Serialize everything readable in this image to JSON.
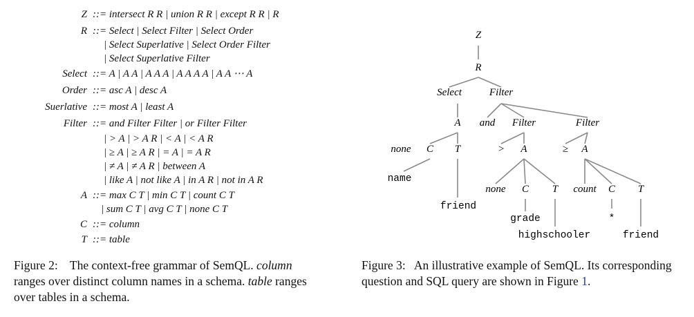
{
  "grammar": [
    {
      "lhs": "Z",
      "rhs": "::= intersect R R | union R R | except R R | R"
    },
    {
      "lhs": "R",
      "rhs": "::= Select | Select Filter | Select Order"
    },
    {
      "lhs": "",
      "rhs": "| Select Superlative | Select Order Filter"
    },
    {
      "lhs": "",
      "rhs": "| Select Superlative Filter"
    },
    {
      "lhs": "Select",
      "rhs": "::= A | A A | A A A | A A A A | A A ⋯ A"
    },
    {
      "lhs": "Order",
      "rhs": "::= asc A | desc A"
    },
    {
      "lhs": "Suerlative",
      "rhs": "::= most A | least A"
    },
    {
      "lhs": "Filter",
      "rhs": "::= and Filter Filter | or Filter Filter"
    },
    {
      "lhs": "",
      "rhs": "| > A  | > A R  | < A  | < A R"
    },
    {
      "lhs": "",
      "rhs": "| ≥ A  | ≥ A R  | = A  | = A R"
    },
    {
      "lhs": "",
      "rhs": "| ≠ A  | ≠ A R  | between A"
    },
    {
      "lhs": "",
      "rhs": "| like A  | not like A  | in A R | not in A R"
    },
    {
      "lhs": "A",
      "rhs": "::= max C  T | min C T | count C T"
    },
    {
      "lhs": "",
      "rhs": "| sum C  T | avg C T | none C T"
    },
    {
      "lhs": "C",
      "rhs": "::= column"
    },
    {
      "lhs": "T",
      "rhs": "::= table"
    }
  ],
  "caption2": {
    "label": "Figure 2:",
    "text": "The context-free grammar of SemQL.",
    "column_word": "column",
    "text2": "ranges over distinct column names in a schema.",
    "table_word": "table",
    "text3": "ranges over tables in a schema."
  },
  "caption3": {
    "label": "Figure 3:",
    "text": "An illustrative example of SemQL. Its corresponding question and SQL query are shown in Figure",
    "ref": "1",
    "end": "."
  },
  "tree": {
    "nodes": [
      {
        "id": "Z",
        "label": "Z",
        "style": "italic"
      },
      {
        "id": "R",
        "label": "R",
        "style": "italic"
      },
      {
        "id": "Select",
        "label": "Select",
        "style": "italic"
      },
      {
        "id": "Filter0",
        "label": "Filter",
        "style": "italic"
      },
      {
        "id": "A0",
        "label": "A",
        "style": "italic"
      },
      {
        "id": "and",
        "label": "and",
        "style": "italic"
      },
      {
        "id": "Filter1",
        "label": "Filter",
        "style": "italic"
      },
      {
        "id": "Filter2",
        "label": "Filter",
        "style": "italic"
      },
      {
        "id": "none0",
        "label": "none",
        "style": "italic"
      },
      {
        "id": "C0",
        "label": "C",
        "style": "italic"
      },
      {
        "id": "T0",
        "label": "T",
        "style": "italic"
      },
      {
        "id": "gt",
        "label": ">",
        "style": "italic"
      },
      {
        "id": "A1",
        "label": "A",
        "style": "italic"
      },
      {
        "id": "ge",
        "label": "≥",
        "style": "italic"
      },
      {
        "id": "A2",
        "label": "A",
        "style": "italic"
      },
      {
        "id": "name",
        "label": "name",
        "style": "mono"
      },
      {
        "id": "friend0",
        "label": "friend",
        "style": "mono"
      },
      {
        "id": "none1",
        "label": "none",
        "style": "italic"
      },
      {
        "id": "C1",
        "label": "C",
        "style": "italic"
      },
      {
        "id": "T1",
        "label": "T",
        "style": "italic"
      },
      {
        "id": "count",
        "label": "count",
        "style": "italic"
      },
      {
        "id": "C2",
        "label": "C",
        "style": "italic"
      },
      {
        "id": "T2",
        "label": "T",
        "style": "italic"
      },
      {
        "id": "grade",
        "label": "grade",
        "style": "mono"
      },
      {
        "id": "highschooler",
        "label": "highschooler",
        "style": "mono"
      },
      {
        "id": "star",
        "label": "*",
        "style": "mono"
      },
      {
        "id": "friend1",
        "label": "friend",
        "style": "mono"
      }
    ]
  }
}
